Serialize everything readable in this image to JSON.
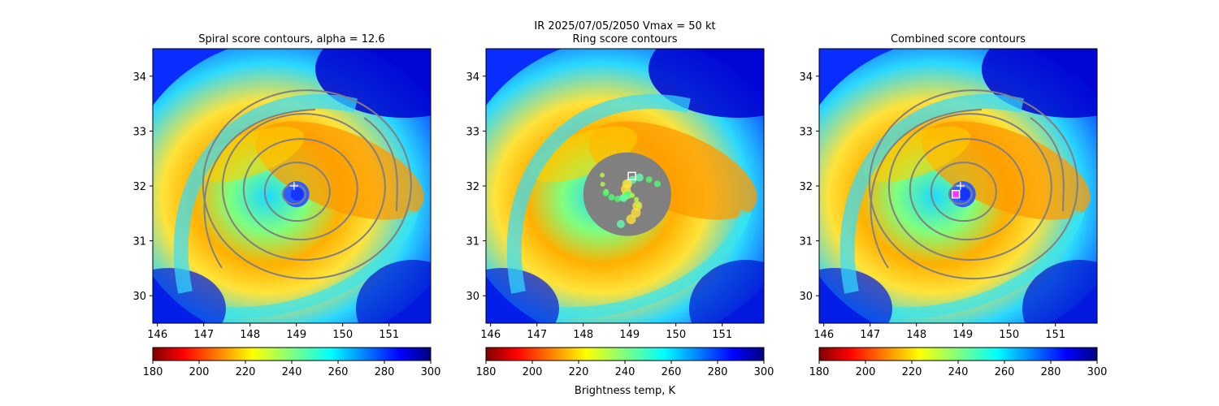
{
  "figure": {
    "suptitle_line1": "IR  2025/07/05/2050    Vmax = 50 kt",
    "colorbar_label": "Brightness temp, K"
  },
  "chart_data": [
    {
      "type": "heatmap",
      "title": "Spiral score contours, alpha = 12.6",
      "xlim": [
        145.9,
        151.9
      ],
      "ylim": [
        29.5,
        34.5
      ],
      "x_ticks": [
        "146",
        "147",
        "148",
        "149",
        "150",
        "151"
      ],
      "y_ticks": [
        "30",
        "31",
        "32",
        "33",
        "34"
      ],
      "x_tick_values": [
        146,
        147,
        148,
        149,
        150,
        151
      ],
      "y_tick_values": [
        30,
        31,
        32,
        33,
        34
      ],
      "colorbar": {
        "min": 180,
        "max": 300,
        "ticks": [
          "180",
          "200",
          "220",
          "240",
          "260",
          "280",
          "300"
        ],
        "tick_values": [
          180,
          200,
          220,
          240,
          260,
          280,
          300
        ],
        "colormap": "jet_r"
      },
      "center_marker": {
        "shape": "plus",
        "lon": 148.95,
        "lat": 32.0
      },
      "contour_color": "#808080"
    },
    {
      "type": "heatmap",
      "title": "Ring score contours",
      "xlim": [
        145.9,
        151.9
      ],
      "ylim": [
        29.5,
        34.5
      ],
      "x_ticks": [
        "146",
        "147",
        "148",
        "149",
        "150",
        "151"
      ],
      "y_ticks": [
        "30",
        "31",
        "32",
        "33",
        "34"
      ],
      "x_tick_values": [
        146,
        147,
        148,
        149,
        150,
        151
      ],
      "y_tick_values": [
        30,
        31,
        32,
        33,
        34
      ],
      "colorbar": {
        "min": 180,
        "max": 300,
        "ticks": [
          "180",
          "200",
          "220",
          "240",
          "260",
          "280",
          "300"
        ],
        "tick_values": [
          180,
          200,
          220,
          240,
          260,
          280,
          300
        ],
        "colormap": "jet_r"
      },
      "ring_region": {
        "lon": 148.95,
        "lat": 31.85,
        "radius_deg": 0.95
      },
      "center_marker": {
        "shape": "square",
        "lon": 149.05,
        "lat": 32.18
      },
      "contour_color": "#808080"
    },
    {
      "type": "heatmap",
      "title": "Combined score contours",
      "xlim": [
        145.9,
        151.9
      ],
      "ylim": [
        29.5,
        34.5
      ],
      "x_ticks": [
        "146",
        "147",
        "148",
        "149",
        "150",
        "151"
      ],
      "y_ticks": [
        "30",
        "31",
        "32",
        "33",
        "34"
      ],
      "x_tick_values": [
        146,
        147,
        148,
        149,
        150,
        151
      ],
      "y_tick_values": [
        30,
        31,
        32,
        33,
        34
      ],
      "colorbar": {
        "min": 180,
        "max": 300,
        "ticks": [
          "180",
          "200",
          "220",
          "240",
          "260",
          "280",
          "300"
        ],
        "tick_values": [
          180,
          200,
          220,
          240,
          260,
          280,
          300
        ],
        "colormap": "jet_r"
      },
      "center_marker": {
        "shape": "square",
        "lon": 148.85,
        "lat": 31.85
      },
      "plus_marker": {
        "lon": 148.95,
        "lat": 32.0
      },
      "contour_color": "#808080"
    }
  ]
}
